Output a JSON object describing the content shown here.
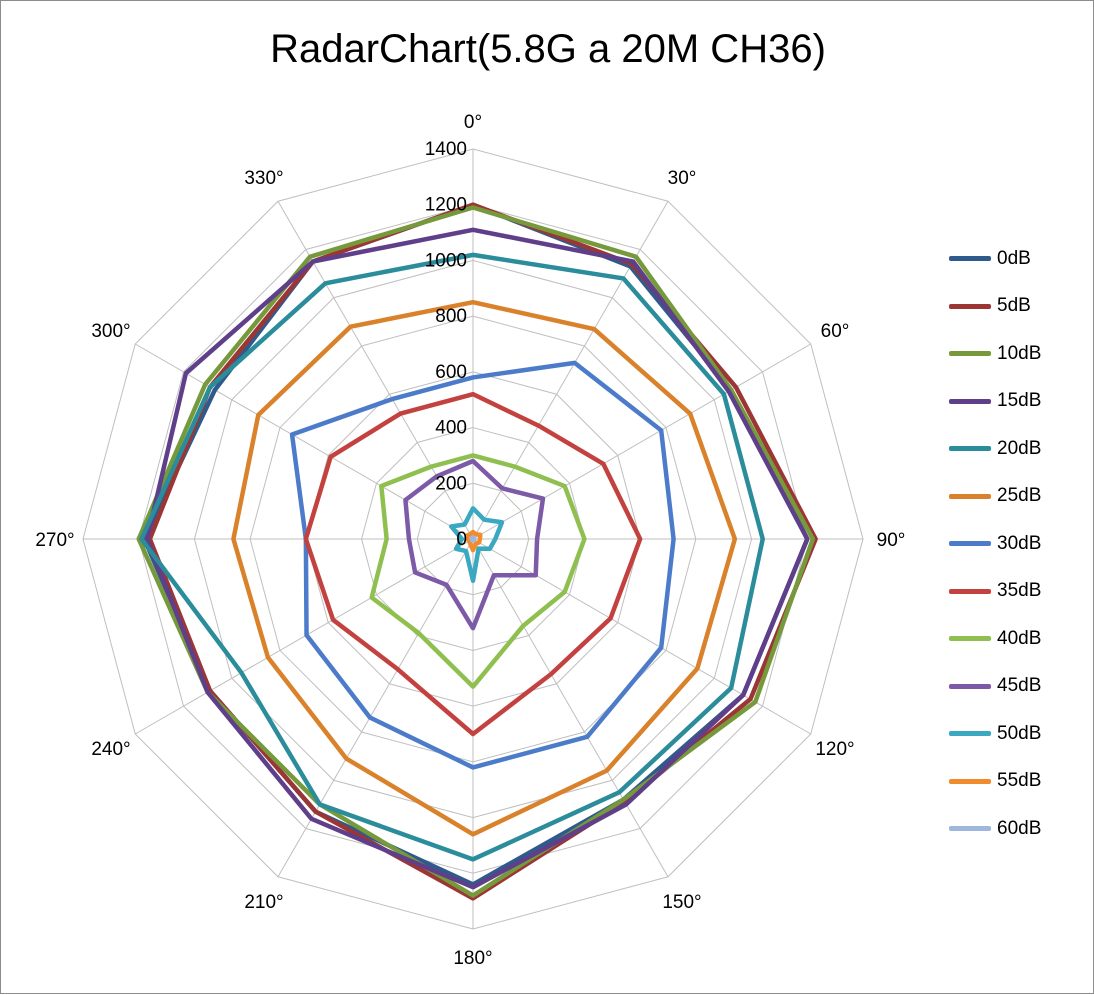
{
  "chart_data": {
    "type": "radar",
    "title": "RadarChart(5.8G a 20M CH36)",
    "angles": [
      "0°",
      "30°",
      "60°",
      "90°",
      "120°",
      "150°",
      "180°",
      "210°",
      "240°",
      "270°",
      "300°",
      "330°"
    ],
    "r_ticks": [
      "0",
      "200",
      "400",
      "600",
      "800",
      "1000",
      "1200",
      "1400"
    ],
    "rlim": [
      0,
      1400
    ],
    "grid": true,
    "legend_position": "right",
    "series": [
      {
        "name": "0dB",
        "color": "#2f5b8c",
        "values": [
          1200,
          1130,
          1070,
          1200,
          1120,
          1080,
          1240,
          1130,
          1090,
          1180,
          1070,
          1150
        ]
      },
      {
        "name": "5dB",
        "color": "#9b3634",
        "values": [
          1200,
          1140,
          1090,
          1230,
          1150,
          1090,
          1290,
          1130,
          1090,
          1160,
          1090,
          1150
        ]
      },
      {
        "name": "10dB",
        "color": "#769a3b",
        "values": [
          1190,
          1170,
          1070,
          1220,
          1170,
          1080,
          1280,
          1100,
          1100,
          1200,
          1110,
          1170
        ]
      },
      {
        "name": "15dB",
        "color": "#5f3f8a",
        "values": [
          1110,
          1150,
          1060,
          1200,
          1120,
          1100,
          1250,
          1160,
          1100,
          1170,
          1190,
          1150
        ]
      },
      {
        "name": "20dB",
        "color": "#2b8d9b",
        "values": [
          1020,
          1080,
          1040,
          1040,
          1070,
          1050,
          1150,
          1100,
          960,
          1190,
          1090,
          1060
        ]
      },
      {
        "name": "25dB",
        "color": "#d9822b",
        "values": [
          850,
          870,
          900,
          940,
          930,
          960,
          1060,
          910,
          850,
          860,
          890,
          880
        ]
      },
      {
        "name": "30dB",
        "color": "#4c7cc9",
        "values": [
          580,
          730,
          780,
          720,
          780,
          820,
          820,
          740,
          690,
          600,
          750,
          580
        ]
      },
      {
        "name": "35dB",
        "color": "#c3413e",
        "values": [
          520,
          470,
          540,
          600,
          570,
          560,
          700,
          540,
          580,
          600,
          590,
          520
        ]
      },
      {
        "name": "40dB",
        "color": "#8fbf4f",
        "values": [
          300,
          300,
          380,
          400,
          380,
          360,
          530,
          390,
          420,
          310,
          380,
          300
        ]
      },
      {
        "name": "45dB",
        "color": "#7d5aa8",
        "values": [
          280,
          210,
          290,
          230,
          260,
          150,
          320,
          190,
          240,
          230,
          280,
          260
        ]
      },
      {
        "name": "50dB",
        "color": "#39a8c0",
        "values": [
          110,
          80,
          120,
          80,
          70,
          40,
          150,
          50,
          70,
          40,
          90,
          60
        ]
      },
      {
        "name": "55dB",
        "color": "#f08c2e",
        "values": [
          25,
          20,
          30,
          25,
          25,
          20,
          40,
          20,
          15,
          20,
          25,
          20
        ]
      },
      {
        "name": "60dB",
        "color": "#9fb7dc",
        "values": [
          5,
          5,
          5,
          5,
          5,
          5,
          5,
          5,
          5,
          5,
          5,
          5
        ]
      }
    ]
  }
}
